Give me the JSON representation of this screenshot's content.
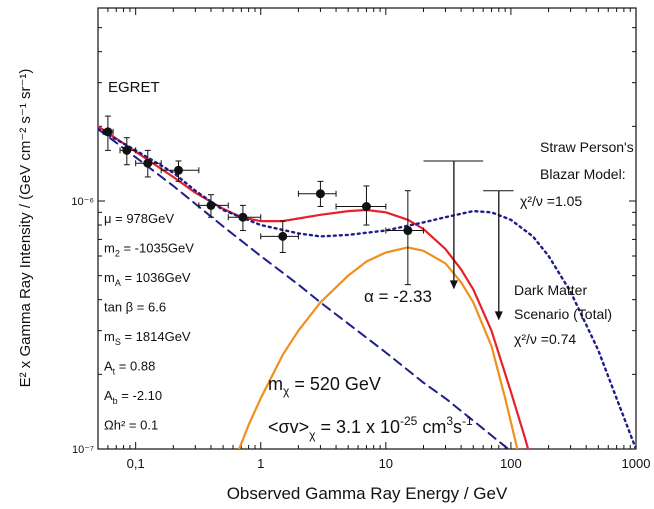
{
  "chart_data": {
    "type": "scatter",
    "title": "",
    "xlabel": "Observed Gamma Ray Energy / GeV",
    "ylabel": "E² x Gamma Ray Intensity  /  (GeV cm⁻² s⁻¹ sr⁻¹)",
    "xscale": "log",
    "yscale": "log",
    "xlim": [
      0.05,
      1000
    ],
    "ylim": [
      1e-07,
      6e-06
    ],
    "x_tick_labels": [
      {
        "value": 0.1,
        "label": "0,1"
      },
      {
        "value": 1,
        "label": "1"
      },
      {
        "value": 10,
        "label": "10"
      },
      {
        "value": 100,
        "label": "100"
      },
      {
        "value": 1000,
        "label": "1000"
      }
    ],
    "y_tick_labels": [
      {
        "value": 1e-07,
        "label": "10⁻⁷"
      },
      {
        "value": 1e-06,
        "label": "10⁻⁶"
      }
    ],
    "grid": false,
    "egret_label": "EGRET",
    "egret_points": [
      {
        "x": 0.06,
        "y": 1.9e-06,
        "xerr": [
          0.055,
          0.066
        ],
        "yerr": [
          1.6e-06,
          2.2e-06
        ]
      },
      {
        "x": 0.085,
        "y": 1.6e-06,
        "xerr": [
          0.075,
          0.1
        ],
        "yerr": [
          1.4e-06,
          1.8e-06
        ]
      },
      {
        "x": 0.125,
        "y": 1.42e-06,
        "xerr": [
          0.1,
          0.16
        ],
        "yerr": [
          1.25e-06,
          1.6e-06
        ]
      },
      {
        "x": 0.22,
        "y": 1.33e-06,
        "xerr": [
          0.16,
          0.32
        ],
        "yerr": [
          1.2e-06,
          1.45e-06
        ]
      },
      {
        "x": 0.4,
        "y": 9.6e-07,
        "xerr": [
          0.32,
          0.55
        ],
        "yerr": [
          8.6e-07,
          1.06e-06
        ]
      },
      {
        "x": 0.72,
        "y": 8.6e-07,
        "xerr": [
          0.55,
          1.0
        ],
        "yerr": [
          7.6e-07,
          9.6e-07
        ]
      },
      {
        "x": 1.5,
        "y": 7.2e-07,
        "xerr": [
          1.0,
          2.0
        ],
        "yerr": [
          6.2e-07,
          8.3e-07
        ]
      },
      {
        "x": 3.0,
        "y": 1.07e-06,
        "xerr": [
          2.0,
          4.0
        ],
        "yerr": [
          9.5e-07,
          1.2e-06
        ]
      },
      {
        "x": 7.0,
        "y": 9.5e-07,
        "xerr": [
          4.0,
          10.0
        ],
        "yerr": [
          8e-07,
          1.15e-06
        ]
      },
      {
        "x": 15.0,
        "y": 7.6e-07,
        "xerr": [
          10.0,
          20.0
        ],
        "yerr": [
          4.6e-07,
          1.1e-06
        ]
      }
    ],
    "upper_limits": [
      {
        "x": 35,
        "y": 1.45e-06,
        "xerr": [
          20,
          60
        ],
        "arrow_to": 4.4e-07
      },
      {
        "x": 80,
        "y": 1.1e-06,
        "xerr": [
          60,
          105
        ],
        "arrow_to": 3.3e-07
      }
    ],
    "series": [
      {
        "style": "solid",
        "color": "#e8202a",
        "x": [
          0.05,
          0.1,
          0.2,
          0.3,
          0.5,
          0.7,
          1,
          1.5,
          2,
          3,
          5,
          7,
          10,
          15,
          20,
          30,
          40,
          50,
          70,
          100,
          130,
          150
        ],
        "y": [
          2e-06,
          1.58e-06,
          1.25e-06,
          1.08e-06,
          9.3e-07,
          8.6e-07,
          8.3e-07,
          8.3e-07,
          8.5e-07,
          8.8e-07,
          9.1e-07,
          9.2e-07,
          9e-07,
          8.4e-07,
          7.7e-07,
          6.4e-07,
          5.3e-07,
          4.4e-07,
          3e-07,
          1.7e-07,
          1.1e-07,
          8.5e-08
        ]
      },
      {
        "style": "solid",
        "color": "#f0901c",
        "x": [
          0.62,
          0.8,
          1,
          1.5,
          2,
          3,
          5,
          7,
          10,
          15,
          20,
          30,
          40,
          50,
          70,
          90,
          110,
          120
        ],
        "y": [
          9e-08,
          1.25e-07,
          1.6e-07,
          2.4e-07,
          3e-07,
          3.9e-07,
          5e-07,
          5.7e-07,
          6.2e-07,
          6.5e-07,
          6.3e-07,
          5.6e-07,
          4.7e-07,
          3.9e-07,
          2.6e-07,
          1.6e-07,
          1.05e-07,
          8.5e-08
        ]
      },
      {
        "style": "dashed",
        "color": "#1e1e8c",
        "x": [
          0.05,
          0.1,
          0.2,
          0.5,
          1,
          2,
          3,
          5,
          10,
          20,
          30,
          50,
          100
        ],
        "y": [
          1.95e-06,
          1.5e-06,
          1.15e-06,
          7.9e-07,
          6e-07,
          4.6e-07,
          3.9e-07,
          3.2e-07,
          2.45e-07,
          1.85e-07,
          1.6e-07,
          1.3e-07,
          9.8e-08
        ]
      },
      {
        "style": "dotted",
        "color": "#1e1e8c",
        "x": [
          0.05,
          0.1,
          0.2,
          0.3,
          0.5,
          1,
          2,
          3,
          5,
          10,
          20,
          30,
          50,
          70,
          100,
          150,
          200,
          300,
          500,
          700,
          1000
        ],
        "y": [
          1.95e-06,
          1.6e-06,
          1.3e-06,
          1.1e-06,
          9.2e-07,
          8e-07,
          7.4e-07,
          7.2e-07,
          7.3e-07,
          7.6e-07,
          8.2e-07,
          8.6e-07,
          9.1e-07,
          9e-07,
          8.4e-07,
          7.2e-07,
          6e-07,
          4.3e-07,
          2.5e-07,
          1.6e-07,
          1e-07
        ]
      }
    ],
    "params": [
      {
        "sym": "μ",
        "sub": "",
        "text": " = 978GeV"
      },
      {
        "sym": "m",
        "sub": "2",
        "text": " = -1035GeV"
      },
      {
        "sym": "m",
        "sub": "A",
        "text": " = 1036GeV"
      },
      {
        "sym": "tan β",
        "sub": "",
        "text": " = 6.6"
      },
      {
        "sym": "m",
        "sub": "S",
        "text": " = 1814GeV"
      },
      {
        "sym": "A",
        "sub": "t",
        "text": " = 0.88"
      },
      {
        "sym": "A",
        "sub": "b",
        "text": " = -2.10"
      },
      {
        "sym": "Ωh²",
        "sub": "",
        "text": " = 0.1"
      }
    ],
    "annotations": {
      "blazar": [
        "Straw Person's",
        "Blazar Model:"
      ],
      "blazar_chi": {
        "chi": "χ²/ν",
        "value": " =1.05"
      },
      "dm": [
        "Dark Matter",
        "Scenario (Total)"
      ],
      "dm_chi": {
        "chi": "χ²/ν",
        "value": " =0.74"
      },
      "alpha": "α = -2.33",
      "mchi": {
        "sym": "m",
        "sub": "χ",
        "text": " = 520 GeV"
      },
      "sigmav": {
        "pre": "<σv>",
        "sub": "χ",
        "text": " = 3.1 x 10",
        "exp": "-25",
        "unit": " cm",
        "unit_exp": "3",
        "tail": "s",
        "tail_exp": "-1"
      }
    }
  }
}
